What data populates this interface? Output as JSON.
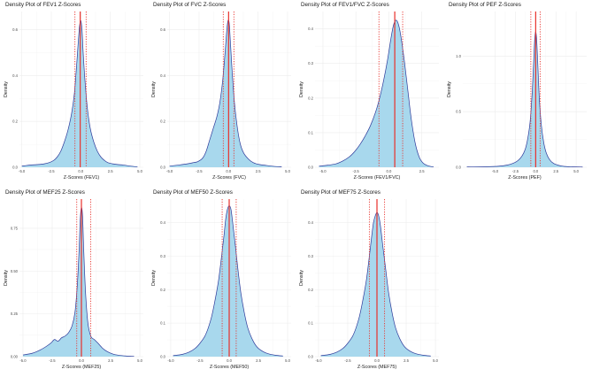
{
  "chart_data": [
    {
      "type": "area",
      "title": "Density Plot of FEV1 Z-Scores",
      "xlabel": "Z-Scores (FEV1)",
      "ylabel": "Density",
      "xlim": [
        -5.2,
        5.3
      ],
      "ylim": [
        0,
        0.68
      ],
      "xticks": [
        -5.0,
        -2.5,
        0.0,
        2.5,
        5.0
      ],
      "xtick_labels": [
        "-5.0",
        "-2.5",
        "0.0",
        "2.5",
        "5.0"
      ],
      "yticks": [
        0.0,
        0.2,
        0.4,
        0.6
      ],
      "ytick_labels": [
        "0.0",
        "0.2",
        "0.4",
        "0.6"
      ],
      "density_x": [
        -5.0,
        -4.2,
        -3.6,
        -3.1,
        -2.7,
        -2.3,
        -2.0,
        -1.7,
        -1.4,
        -1.1,
        -0.8,
        -0.55,
        -0.35,
        -0.2,
        -0.1,
        0.0,
        0.1,
        0.2,
        0.35,
        0.55,
        0.8,
        1.1,
        1.4,
        1.7,
        2.0,
        2.3,
        2.7,
        3.1,
        3.6,
        4.2,
        4.8
      ],
      "density_y": [
        0.005,
        0.01,
        0.012,
        0.015,
        0.02,
        0.03,
        0.045,
        0.07,
        0.11,
        0.16,
        0.23,
        0.32,
        0.45,
        0.56,
        0.62,
        0.64,
        0.6,
        0.5,
        0.38,
        0.26,
        0.17,
        0.11,
        0.07,
        0.045,
        0.03,
        0.02,
        0.015,
        0.012,
        0.01,
        0.005,
        0.002
      ],
      "reference_lines": {
        "mean": -0.05,
        "lower": -0.5,
        "upper": 0.45
      }
    },
    {
      "type": "area",
      "title": "Density Plot of FVC Z-Scores",
      "xlabel": "Z-Scores (FVC)",
      "ylabel": "Density",
      "xlim": [
        -5.2,
        5.3
      ],
      "ylim": [
        0,
        0.68
      ],
      "xticks": [
        -5.0,
        -2.5,
        0.0,
        2.5,
        5.0
      ],
      "xtick_labels": [
        "-5.0",
        "-2.5",
        "0.0",
        "2.5",
        "5.0"
      ],
      "yticks": [
        0.0,
        0.2,
        0.4,
        0.6
      ],
      "ytick_labels": [
        "0.0",
        "0.2",
        "0.4",
        "0.6"
      ],
      "density_x": [
        -5.0,
        -4.2,
        -3.5,
        -3.0,
        -2.6,
        -2.2,
        -1.9,
        -1.6,
        -1.3,
        -1.0,
        -0.75,
        -0.5,
        -0.3,
        -0.15,
        -0.05,
        0.05,
        0.15,
        0.3,
        0.5,
        0.75,
        1.0,
        1.3,
        1.7,
        2.1,
        2.6,
        3.2,
        3.8,
        4.5
      ],
      "density_y": [
        0.005,
        0.01,
        0.015,
        0.02,
        0.025,
        0.04,
        0.07,
        0.12,
        0.17,
        0.22,
        0.28,
        0.38,
        0.5,
        0.6,
        0.64,
        0.63,
        0.55,
        0.42,
        0.28,
        0.17,
        0.1,
        0.06,
        0.035,
        0.02,
        0.012,
        0.008,
        0.004,
        0.002
      ],
      "reference_lines": {
        "mean": 0.0,
        "lower": -0.45,
        "upper": 0.45
      }
    },
    {
      "type": "area",
      "title": "Density Plot of FEV1/FVC Z-Scores",
      "xlabel": "Z-Scores (FEV1/FVC)",
      "ylabel": "Density",
      "xlim": [
        -5.6,
        3.8
      ],
      "ylim": [
        0,
        0.45
      ],
      "xticks": [
        -5.0,
        -2.5,
        0.0,
        2.5
      ],
      "xtick_labels": [
        "-5.0",
        "-2.5",
        "0.0",
        "2.5"
      ],
      "yticks": [
        0.0,
        0.1,
        0.2,
        0.3,
        0.4
      ],
      "ytick_labels": [
        "0.0",
        "0.1",
        "0.2",
        "0.3",
        "0.4"
      ],
      "density_x": [
        -5.3,
        -4.6,
        -4.0,
        -3.5,
        -3.0,
        -2.6,
        -2.2,
        -1.8,
        -1.4,
        -1.0,
        -0.7,
        -0.4,
        -0.1,
        0.15,
        0.35,
        0.55,
        0.75,
        0.95,
        1.2,
        1.45,
        1.7,
        2.0,
        2.3,
        2.6,
        3.0,
        3.4
      ],
      "density_y": [
        0.003,
        0.006,
        0.01,
        0.018,
        0.03,
        0.045,
        0.065,
        0.09,
        0.12,
        0.16,
        0.2,
        0.25,
        0.31,
        0.37,
        0.41,
        0.425,
        0.41,
        0.37,
        0.3,
        0.22,
        0.14,
        0.07,
        0.03,
        0.012,
        0.004,
        0.001
      ],
      "reference_lines": {
        "mean": 0.45,
        "lower": -0.75,
        "upper": 1.05
      }
    },
    {
      "type": "area",
      "title": "Density Plot of PEF Z-Scores",
      "xlabel": "Z-Scores (PEF)",
      "ylabel": "Density",
      "xlim": [
        -9.0,
        6.3
      ],
      "ylim": [
        0,
        1.4
      ],
      "xticks": [
        -5.0,
        -2.5,
        0.0,
        2.5,
        5.0
      ],
      "xtick_labels": [
        "-5.0",
        "-2.5",
        "0.0",
        "2.5",
        "5.0"
      ],
      "yticks": [
        0.0,
        0.5,
        1.0
      ],
      "ytick_labels": [
        "0.0",
        "0.5",
        "1.0"
      ],
      "density_x": [
        -8.5,
        -6.0,
        -4.5,
        -3.5,
        -2.8,
        -2.2,
        -1.7,
        -1.3,
        -1.0,
        -0.7,
        -0.45,
        -0.25,
        -0.12,
        0.0,
        0.12,
        0.25,
        0.45,
        0.7,
        1.0,
        1.3,
        1.7,
        2.2,
        2.8,
        3.5,
        4.5,
        5.8
      ],
      "density_y": [
        0.003,
        0.005,
        0.01,
        0.02,
        0.035,
        0.06,
        0.1,
        0.16,
        0.25,
        0.4,
        0.65,
        0.95,
        1.15,
        1.22,
        1.15,
        0.95,
        0.62,
        0.38,
        0.22,
        0.13,
        0.07,
        0.035,
        0.018,
        0.008,
        0.004,
        0.002
      ],
      "reference_lines": {
        "mean": 0.0,
        "lower": -0.6,
        "upper": 0.55
      }
    },
    {
      "type": "area",
      "title": "Density Plot of MEF25 Z-Scores",
      "xlabel": "Z-Scores (MEF25)",
      "ylabel": "Density",
      "xlim": [
        -5.3,
        5.3
      ],
      "ylim": [
        0,
        0.92
      ],
      "xticks": [
        -5.0,
        -2.5,
        0.0,
        2.5,
        5.0
      ],
      "xtick_labels": [
        "-5.0",
        "-2.5",
        "0.0",
        "2.5",
        "5.0"
      ],
      "yticks": [
        0.0,
        0.25,
        0.5,
        0.75
      ],
      "ytick_labels": [
        "0.00",
        "0.25",
        "0.50",
        "0.75"
      ],
      "density_x": [
        -5.0,
        -4.2,
        -3.5,
        -3.0,
        -2.6,
        -2.3,
        -2.0,
        -1.7,
        -1.4,
        -1.1,
        -0.8,
        -0.55,
        -0.35,
        -0.2,
        -0.1,
        0.0,
        0.1,
        0.2,
        0.35,
        0.55,
        0.8,
        1.1,
        1.4,
        1.8,
        2.2,
        2.7,
        3.2,
        3.8,
        4.5
      ],
      "density_y": [
        0.01,
        0.02,
        0.04,
        0.06,
        0.08,
        0.1,
        0.09,
        0.11,
        0.12,
        0.14,
        0.18,
        0.26,
        0.42,
        0.62,
        0.8,
        0.87,
        0.82,
        0.62,
        0.38,
        0.2,
        0.12,
        0.1,
        0.08,
        0.05,
        0.03,
        0.015,
        0.008,
        0.004,
        0.002
      ],
      "reference_lines": {
        "mean": 0.0,
        "lower": -0.4,
        "upper": 0.8
      }
    },
    {
      "type": "area",
      "title": "Density Plot of MEF50 Z-Scores",
      "xlabel": "Z-Scores (MEF50)",
      "ylabel": "Density",
      "xlim": [
        -5.3,
        5.3
      ],
      "ylim": [
        0,
        0.47
      ],
      "xticks": [
        -5.0,
        -2.5,
        0.0,
        2.5,
        5.0
      ],
      "xtick_labels": [
        "-5.0",
        "-2.5",
        "0.0",
        "2.5",
        "5.0"
      ],
      "yticks": [
        0.0,
        0.1,
        0.2,
        0.3,
        0.4
      ],
      "ytick_labels": [
        "0.0",
        "0.1",
        "0.2",
        "0.3",
        "0.4"
      ],
      "density_x": [
        -4.8,
        -4.0,
        -3.4,
        -2.9,
        -2.5,
        -2.1,
        -1.8,
        -1.5,
        -1.2,
        -0.9,
        -0.65,
        -0.45,
        -0.3,
        -0.15,
        0.0,
        0.15,
        0.3,
        0.5,
        0.75,
        1.0,
        1.3,
        1.6,
        2.0,
        2.4,
        2.9,
        3.4,
        4.0,
        4.6
      ],
      "density_y": [
        0.003,
        0.007,
        0.014,
        0.025,
        0.04,
        0.06,
        0.085,
        0.12,
        0.17,
        0.23,
        0.3,
        0.36,
        0.41,
        0.44,
        0.45,
        0.44,
        0.4,
        0.34,
        0.26,
        0.19,
        0.13,
        0.085,
        0.05,
        0.028,
        0.015,
        0.008,
        0.004,
        0.002
      ],
      "reference_lines": {
        "mean": 0.0,
        "lower": -0.6,
        "upper": 0.6
      }
    },
    {
      "type": "area",
      "title": "Density Plot of MEF75 Z-Scores",
      "xlabel": "Z-Scores (MEF75)",
      "ylabel": "Density",
      "xlim": [
        -5.3,
        5.3
      ],
      "ylim": [
        0,
        0.47
      ],
      "xticks": [
        -5.0,
        -2.5,
        0.0,
        2.5,
        5.0
      ],
      "xtick_labels": [
        "-5.0",
        "-2.5",
        "0.0",
        "2.5",
        "5.0"
      ],
      "yticks": [
        0.0,
        0.1,
        0.2,
        0.3,
        0.4
      ],
      "ytick_labels": [
        "0.0",
        "0.1",
        "0.2",
        "0.3",
        "0.4"
      ],
      "density_x": [
        -4.8,
        -4.0,
        -3.4,
        -2.9,
        -2.5,
        -2.1,
        -1.8,
        -1.5,
        -1.2,
        -0.9,
        -0.65,
        -0.45,
        -0.3,
        -0.15,
        0.0,
        0.15,
        0.3,
        0.5,
        0.75,
        1.0,
        1.3,
        1.6,
        2.0,
        2.4,
        2.9,
        3.4,
        4.0,
        4.6
      ],
      "density_y": [
        0.003,
        0.007,
        0.014,
        0.025,
        0.04,
        0.06,
        0.085,
        0.12,
        0.17,
        0.23,
        0.3,
        0.36,
        0.4,
        0.42,
        0.43,
        0.42,
        0.39,
        0.33,
        0.26,
        0.19,
        0.13,
        0.085,
        0.05,
        0.028,
        0.015,
        0.008,
        0.004,
        0.002
      ],
      "reference_lines": {
        "mean": 0.0,
        "lower": -0.65,
        "upper": 0.65
      }
    }
  ],
  "colors": {
    "fill": "#a8d8ed",
    "outline": "#2d3a9a",
    "mean_line": "#e8302a",
    "sd_line": "#e8302a",
    "grid": "#ececec"
  }
}
